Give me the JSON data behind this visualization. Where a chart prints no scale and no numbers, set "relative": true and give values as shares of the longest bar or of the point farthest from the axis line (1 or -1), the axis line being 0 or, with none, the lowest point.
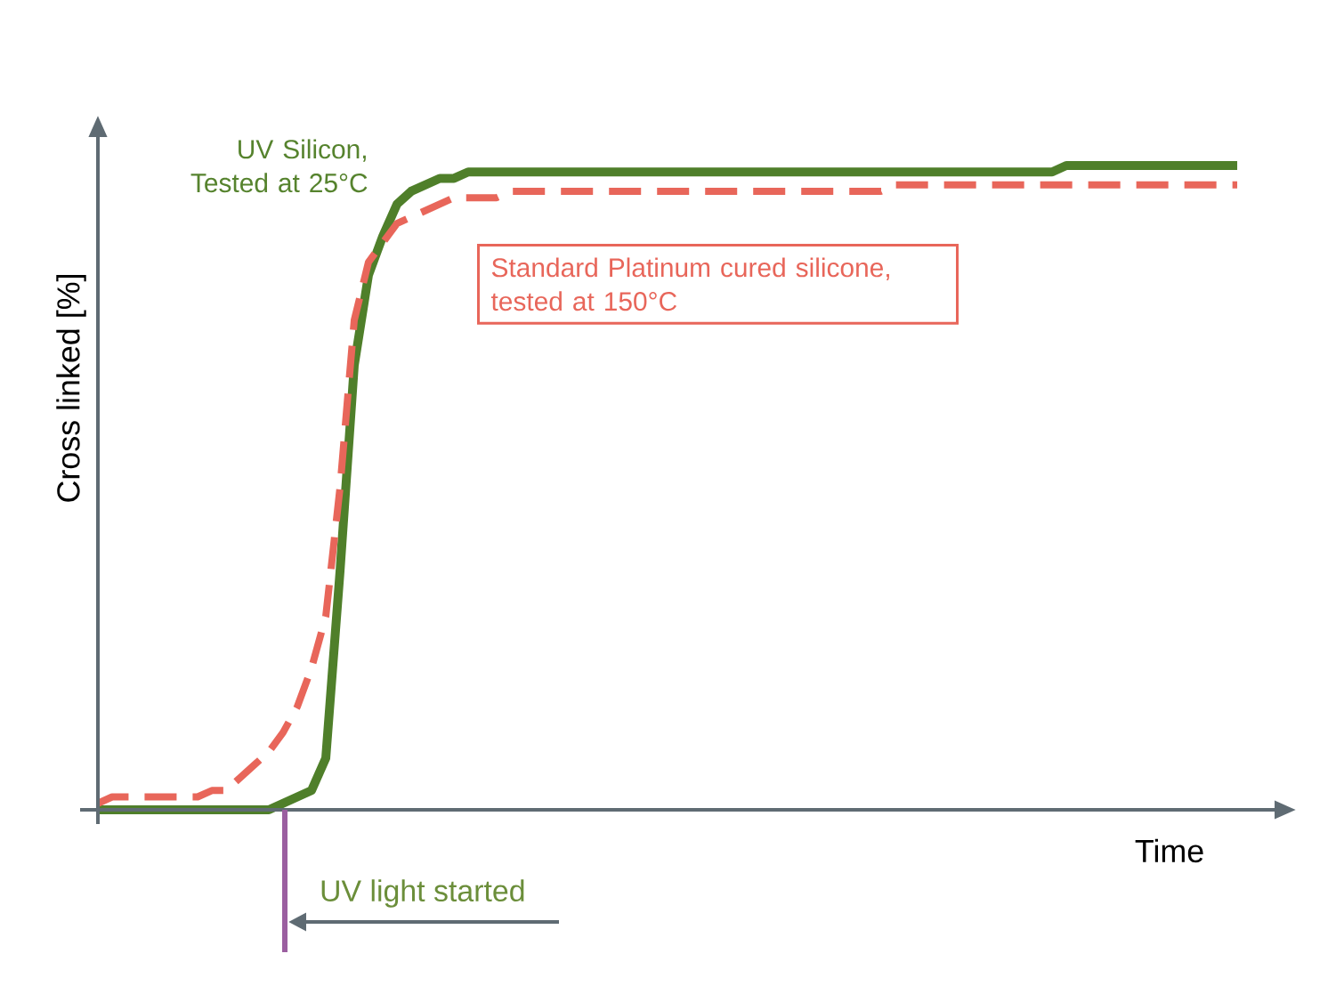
{
  "chart_data": {
    "type": "line",
    "relative": true,
    "xlabel": "Time",
    "ylabel": "Cross linked  [%]",
    "marker": "none",
    "categories": [
      null,
      null,
      null,
      null,
      null,
      null,
      null,
      null,
      null,
      null,
      null,
      null,
      null,
      null,
      null,
      null,
      null,
      null,
      null,
      null,
      null,
      null,
      null,
      null,
      null,
      null,
      null,
      null,
      null,
      null,
      null,
      null,
      null,
      null,
      null,
      null,
      null,
      null,
      null,
      null,
      null,
      null,
      null,
      null,
      null,
      null,
      null,
      null,
      null,
      null,
      null,
      null,
      null,
      null,
      null,
      null,
      null,
      null,
      null,
      null,
      null,
      null,
      null,
      null,
      null,
      null,
      null,
      null,
      null,
      null,
      null,
      null,
      null,
      null,
      null,
      null,
      null,
      null,
      null,
      null,
      null
    ],
    "series": [
      {
        "name": "UV Silicon, Tested at 25°C",
        "color": "#4f7f2a",
        "line_style": "solid",
        "values": [
          0,
          0,
          0,
          0,
          0,
          0,
          0,
          0,
          0,
          0,
          0,
          0,
          0,
          0.01,
          0.02,
          0.03,
          0.08,
          0.37,
          0.69,
          0.83,
          0.89,
          0.94,
          0.96,
          0.97,
          0.98,
          0.98,
          0.99,
          0.99,
          0.99,
          0.99,
          0.99,
          0.99,
          0.99,
          0.99,
          0.99,
          0.99,
          0.99,
          0.99,
          0.99,
          0.99,
          0.99,
          0.99,
          0.99,
          0.99,
          0.99,
          0.99,
          0.99,
          0.99,
          0.99,
          0.99,
          0.99,
          0.99,
          0.99,
          0.99,
          0.99,
          0.99,
          0.99,
          0.99,
          0.99,
          0.99,
          0.99,
          0.99,
          0.99,
          0.99,
          0.99,
          0.99,
          0.99,
          0.99,
          1,
          1,
          1,
          1,
          1,
          1,
          1,
          1,
          1,
          1,
          1,
          1,
          1
        ]
      },
      {
        "name": "Standard Platinum cured silicone, tested at 150°C",
        "color": "#e8665a",
        "line_style": "dashed",
        "values": [
          0.01,
          0.02,
          0.02,
          0.02,
          0.02,
          0.02,
          0.02,
          0.02,
          0.03,
          0.03,
          0.05,
          0.07,
          0.09,
          0.12,
          0.16,
          0.22,
          0.3,
          0.5,
          0.76,
          0.85,
          0.88,
          0.91,
          0.92,
          0.93,
          0.94,
          0.95,
          0.95,
          0.95,
          0.95,
          0.96,
          0.96,
          0.96,
          0.96,
          0.96,
          0.96,
          0.96,
          0.96,
          0.96,
          0.96,
          0.96,
          0.96,
          0.96,
          0.96,
          0.96,
          0.96,
          0.96,
          0.96,
          0.96,
          0.96,
          0.96,
          0.96,
          0.96,
          0.96,
          0.96,
          0.96,
          0.96,
          0.97,
          0.97,
          0.97,
          0.97,
          0.97,
          0.97,
          0.97,
          0.97,
          0.97,
          0.97,
          0.97,
          0.97,
          0.97,
          0.97,
          0.97,
          0.97,
          0.97,
          0.97,
          0.97,
          0.97,
          0.97,
          0.97,
          0.97,
          0.97,
          0.97
        ]
      }
    ],
    "annotations": [
      "UV light started"
    ]
  }
}
